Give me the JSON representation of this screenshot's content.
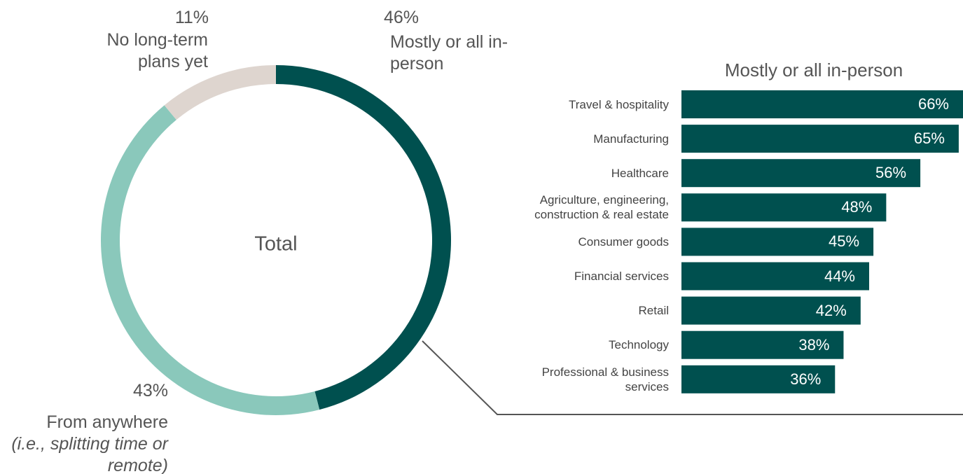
{
  "chart_data": [
    {
      "type": "donut",
      "title": "Total",
      "categories": [
        "Mostly or all in-person",
        "From anywhere",
        "No long-term plans yet"
      ],
      "values": [
        46,
        43,
        11
      ],
      "value_labels": [
        "46%",
        "43%",
        "11%"
      ],
      "colors": [
        "#00504f",
        "#8ac8bb",
        "#ded5cf"
      ],
      "annotations": [
        "(i.e., splitting time or remote)"
      ]
    },
    {
      "type": "hbar",
      "title": "Mostly or all in-person",
      "categories": [
        "Travel & hospitality",
        "Manufacturing",
        "Healthcare",
        "Agriculture, engineering, construction & real estate",
        "Consumer goods",
        "Financial services",
        "Retail",
        "Technology",
        "Professional & business services"
      ],
      "values": [
        66,
        65,
        56,
        48,
        45,
        44,
        42,
        38,
        36
      ],
      "value_labels": [
        "66%",
        "65%",
        "56%",
        "48%",
        "45%",
        "44%",
        "42%",
        "38%",
        "36%"
      ],
      "color": "#00504f"
    }
  ]
}
